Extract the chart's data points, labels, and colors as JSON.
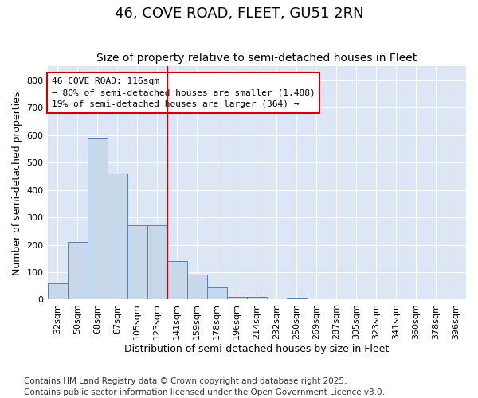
{
  "title1": "46, COVE ROAD, FLEET, GU51 2RN",
  "title2": "Size of property relative to semi-detached houses in Fleet",
  "xlabel": "Distribution of semi-detached houses by size in Fleet",
  "ylabel": "Number of semi-detached properties",
  "categories": [
    "32sqm",
    "50sqm",
    "68sqm",
    "87sqm",
    "105sqm",
    "123sqm",
    "141sqm",
    "159sqm",
    "178sqm",
    "196sqm",
    "214sqm",
    "232sqm",
    "250sqm",
    "269sqm",
    "287sqm",
    "305sqm",
    "323sqm",
    "341sqm",
    "360sqm",
    "378sqm",
    "396sqm"
  ],
  "values": [
    60,
    210,
    590,
    460,
    270,
    270,
    140,
    90,
    45,
    10,
    10,
    0,
    5,
    0,
    0,
    0,
    0,
    0,
    0,
    0,
    0
  ],
  "bar_color": "#c8d8eb",
  "bar_edge_color": "#5580b0",
  "vline_color": "#cc0000",
  "vline_x": 5.5,
  "annotation_line1": "46 COVE ROAD: 116sqm",
  "annotation_line2": "← 80% of semi-detached houses are smaller (1,488)",
  "annotation_line3": "19% of semi-detached houses are larger (364) →",
  "annotation_box_edgecolor": "#cc0000",
  "ylim": [
    0,
    850
  ],
  "yticks": [
    0,
    100,
    200,
    300,
    400,
    500,
    600,
    700,
    800
  ],
  "fig_bg_color": "#ffffff",
  "plot_bg_color": "#dce6f5",
  "grid_color": "#ffffff",
  "title_fontsize": 13,
  "subtitle_fontsize": 10,
  "axis_label_fontsize": 9,
  "tick_fontsize": 8,
  "annotation_fontsize": 8,
  "footer_fontsize": 7.5,
  "footer": "Contains HM Land Registry data © Crown copyright and database right 2025.\nContains public sector information licensed under the Open Government Licence v3.0."
}
